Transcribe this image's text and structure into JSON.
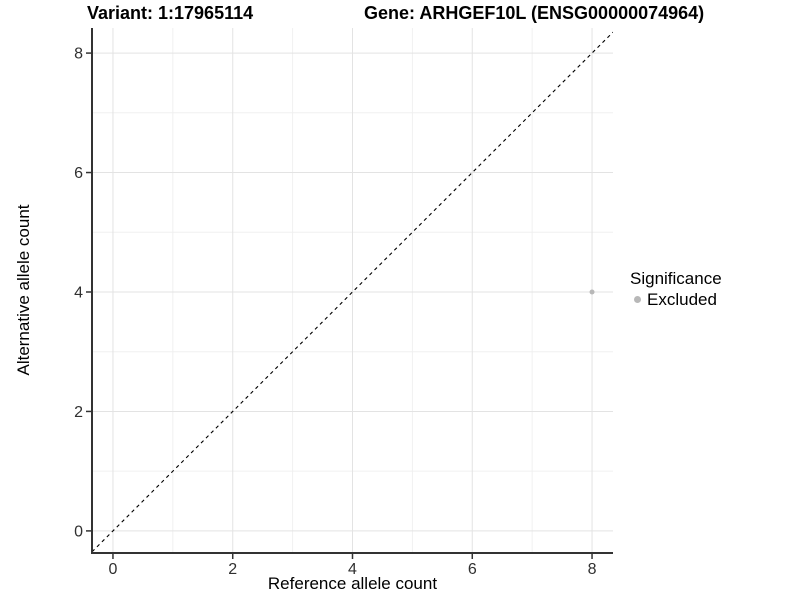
{
  "figure": {
    "title_variant": "Variant: 1:17965114",
    "title_gene": "Gene: ARHGEF10L (ENSG00000074964)"
  },
  "legend": {
    "title": "Significance",
    "items": [
      {
        "label": "Excluded",
        "color": "#b8b8b8"
      }
    ]
  },
  "chart_data": {
    "type": "scatter",
    "title_left": "Variant: 1:17965114",
    "title_right": "Gene: ARHGEF10L (ENSG00000074964)",
    "xlabel": "Reference allele count",
    "ylabel": "Alternative allele count",
    "xlim": [
      -0.35,
      8.35
    ],
    "ylim": [
      -0.37,
      8.42
    ],
    "xticks": [
      0,
      2,
      4,
      6,
      8
    ],
    "yticks": [
      0,
      2,
      4,
      6,
      8
    ],
    "xticks_minor": [
      1,
      3,
      5,
      7
    ],
    "yticks_minor": [
      1,
      3,
      5,
      7
    ],
    "grid": "major+minor",
    "legend_title": "Significance",
    "legend_position": "right",
    "series": [
      {
        "name": "Excluded",
        "color": "#b8b8b8",
        "points": [
          {
            "x": 8,
            "y": 4
          }
        ]
      }
    ],
    "reference_line": {
      "slope": 1,
      "intercept": 0,
      "style": "dashed",
      "color": "#000000"
    }
  },
  "colors": {
    "background": "#ffffff",
    "grid_major": "#e3e3e3",
    "grid_minor": "#f0f0f0",
    "axis_line": "#333333",
    "tick_mark": "#333333",
    "tick_text": "#303030",
    "reference_line": "#000000",
    "point": "#b8b8b8"
  }
}
